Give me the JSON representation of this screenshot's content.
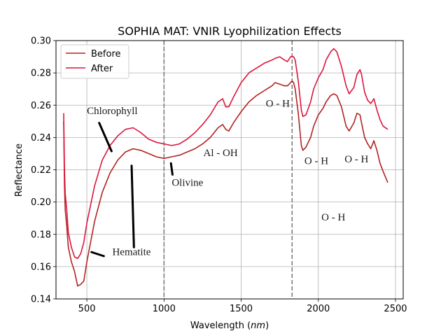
{
  "chart_data": {
    "type": "line",
    "title": "SOPHIA MAT: VNIR Lyophilization Effects",
    "xlabel": "Wavelength",
    "xlabel_unit": "nm",
    "ylabel": "Reflectance",
    "xlim": [
      300,
      2550
    ],
    "ylim": [
      0.14,
      0.3
    ],
    "xticks": [
      500,
      1000,
      1500,
      2000,
      2500
    ],
    "yticks": [
      0.14,
      0.16,
      0.18,
      0.2,
      0.22,
      0.24,
      0.26,
      0.28,
      0.3
    ],
    "grid": true,
    "legend_position": "top-left",
    "vlines": [
      1000,
      1830
    ],
    "series": [
      {
        "name": "Before",
        "color": "#b22222",
        "x": [
          350,
          355,
          360,
          370,
          380,
          400,
          420,
          440,
          460,
          480,
          500,
          550,
          600,
          650,
          700,
          750,
          800,
          850,
          900,
          950,
          1000,
          1050,
          1100,
          1150,
          1200,
          1250,
          1300,
          1350,
          1380,
          1400,
          1420,
          1450,
          1500,
          1550,
          1600,
          1650,
          1700,
          1720,
          1750,
          1780,
          1800,
          1820,
          1830,
          1840,
          1850,
          1870,
          1890,
          1900,
          1920,
          1950,
          1970,
          2000,
          2030,
          2050,
          2080,
          2100,
          2120,
          2150,
          2180,
          2200,
          2230,
          2250,
          2270,
          2280,
          2300,
          2320,
          2340,
          2360,
          2380,
          2400,
          2420,
          2450
        ],
        "y": [
          0.25,
          0.21,
          0.195,
          0.185,
          0.172,
          0.163,
          0.157,
          0.148,
          0.149,
          0.151,
          0.163,
          0.188,
          0.206,
          0.218,
          0.226,
          0.231,
          0.233,
          0.232,
          0.23,
          0.228,
          0.227,
          0.228,
          0.229,
          0.231,
          0.233,
          0.236,
          0.24,
          0.246,
          0.248,
          0.245,
          0.244,
          0.249,
          0.256,
          0.262,
          0.266,
          0.269,
          0.272,
          0.274,
          0.273,
          0.272,
          0.272,
          0.274,
          0.275,
          0.274,
          0.27,
          0.255,
          0.235,
          0.232,
          0.234,
          0.24,
          0.247,
          0.254,
          0.258,
          0.262,
          0.266,
          0.267,
          0.266,
          0.259,
          0.247,
          0.244,
          0.249,
          0.255,
          0.254,
          0.249,
          0.24,
          0.236,
          0.233,
          0.238,
          0.232,
          0.224,
          0.219,
          0.212
        ]
      },
      {
        "name": "After",
        "color": "#dc143c",
        "x": [
          350,
          355,
          360,
          370,
          380,
          400,
          420,
          440,
          460,
          480,
          500,
          550,
          600,
          650,
          700,
          750,
          800,
          850,
          900,
          950,
          1000,
          1050,
          1100,
          1150,
          1200,
          1250,
          1300,
          1350,
          1380,
          1400,
          1420,
          1450,
          1500,
          1550,
          1600,
          1650,
          1700,
          1720,
          1750,
          1780,
          1800,
          1820,
          1830,
          1840,
          1850,
          1870,
          1890,
          1900,
          1920,
          1950,
          1970,
          2000,
          2030,
          2050,
          2080,
          2100,
          2120,
          2150,
          2180,
          2200,
          2230,
          2250,
          2270,
          2280,
          2300,
          2320,
          2340,
          2360,
          2380,
          2400,
          2420,
          2450
        ],
        "y": [
          0.255,
          0.22,
          0.205,
          0.195,
          0.181,
          0.172,
          0.166,
          0.165,
          0.168,
          0.175,
          0.187,
          0.21,
          0.226,
          0.235,
          0.241,
          0.245,
          0.246,
          0.243,
          0.239,
          0.237,
          0.236,
          0.235,
          0.236,
          0.239,
          0.243,
          0.248,
          0.254,
          0.262,
          0.264,
          0.259,
          0.259,
          0.265,
          0.274,
          0.28,
          0.283,
          0.286,
          0.288,
          0.289,
          0.29,
          0.288,
          0.287,
          0.29,
          0.29,
          0.29,
          0.288,
          0.275,
          0.257,
          0.253,
          0.254,
          0.262,
          0.27,
          0.277,
          0.282,
          0.288,
          0.293,
          0.295,
          0.293,
          0.284,
          0.272,
          0.267,
          0.271,
          0.279,
          0.282,
          0.279,
          0.268,
          0.263,
          0.261,
          0.264,
          0.257,
          0.251,
          0.247,
          0.245
        ]
      }
    ],
    "annotations": [
      {
        "text": "Chlorophyll",
        "x": 500,
        "y": 0.2545
      },
      {
        "text": "Hematite",
        "x": 665,
        "y": 0.167
      },
      {
        "text": "Olivine",
        "x": 1050,
        "y": 0.21
      },
      {
        "text": "Al - OH",
        "x": 1255,
        "y": 0.2285
      },
      {
        "text": "O - H",
        "x": 1660,
        "y": 0.259
      },
      {
        "text": "O - H",
        "x": 1910,
        "y": 0.2235
      },
      {
        "text": "O - H",
        "x": 2020,
        "y": 0.1885
      },
      {
        "text": "O - H",
        "x": 2170,
        "y": 0.2245
      }
    ],
    "annotation_markers": [
      {
        "x": [
          580,
          660
        ],
        "y": [
          0.249,
          0.2315
        ]
      },
      {
        "x": [
          790,
          805
        ],
        "y": [
          0.2225,
          0.172
        ]
      },
      {
        "x": [
          530,
          610
        ],
        "y": [
          0.169,
          0.1665
        ]
      },
      {
        "x": [
          1045,
          1055
        ],
        "y": [
          0.224,
          0.217
        ]
      }
    ]
  }
}
